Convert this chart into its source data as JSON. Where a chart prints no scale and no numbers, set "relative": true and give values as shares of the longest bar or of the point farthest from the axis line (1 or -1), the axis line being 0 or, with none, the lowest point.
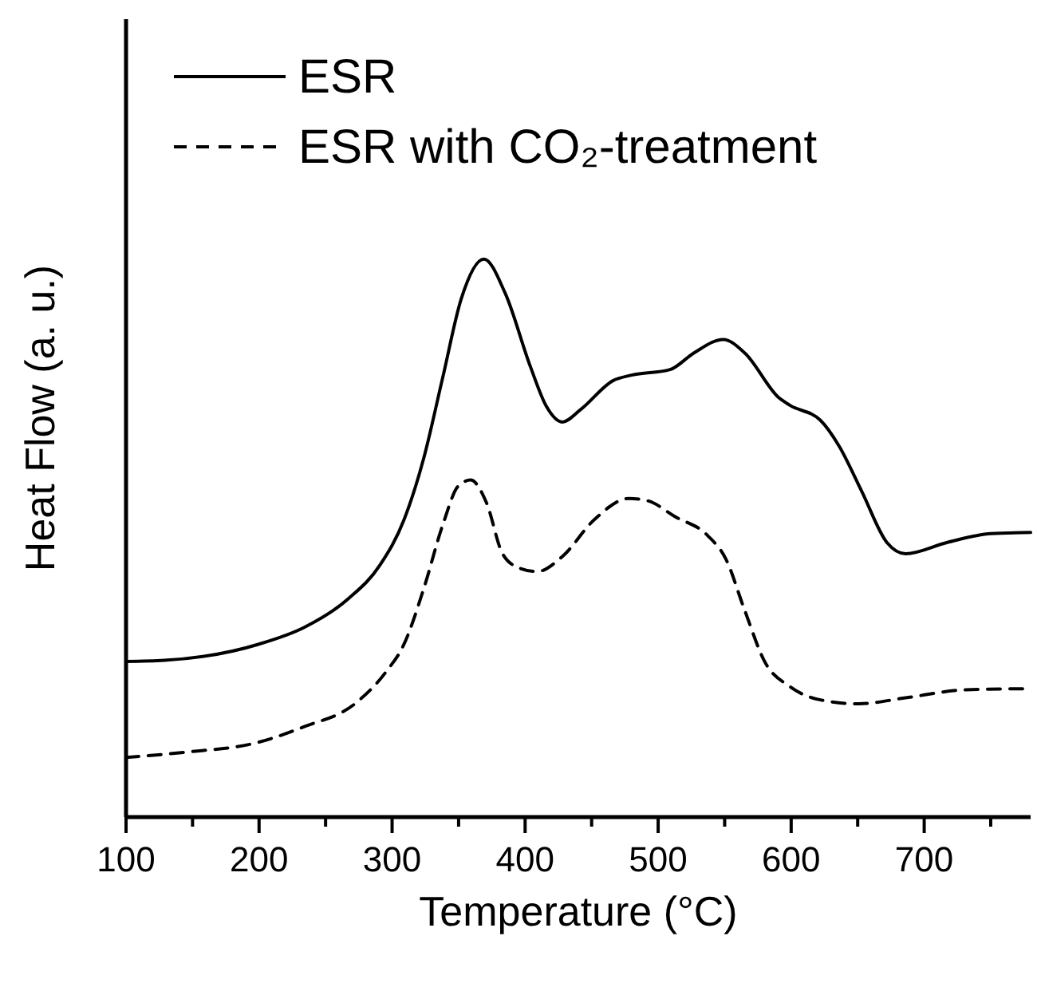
{
  "chart_data": {
    "type": "line",
    "relative": true,
    "xlabel": "Temperature (°C)",
    "ylabel": "Heat Flow (a. u.)",
    "xlim": [
      100,
      780
    ],
    "xticks": [
      100,
      {
        "value": 150,
        "label": null
      },
      200,
      {
        "value": 250,
        "label": null
      },
      300,
      {
        "value": 350,
        "label": null
      },
      400,
      {
        "value": 450,
        "label": null
      },
      500,
      {
        "value": 550,
        "label": null
      },
      600,
      {
        "value": 650,
        "label": null
      },
      700,
      {
        "value": 750,
        "label": null
      }
    ],
    "legend": "top left",
    "grid": false,
    "series": [
      {
        "name": "ESR",
        "color": "#000000",
        "line_style": "solid",
        "x": [
          100,
          129,
          200,
          234,
          267,
          291,
          309,
          324,
          338,
          352,
          369,
          385,
          404,
          416,
          428,
          442,
          466,
          480,
          509,
          527,
          549,
          565,
          591,
          599,
          622,
          636,
          653,
          672,
          686,
          717,
          750,
          780
        ],
        "values": [
          0.279,
          0.281,
          0.31,
          0.34,
          0.391,
          0.452,
          0.533,
          0.645,
          0.787,
          0.929,
          1.0,
          0.939,
          0.807,
          0.736,
          0.708,
          0.731,
          0.782,
          0.792,
          0.802,
          0.832,
          0.856,
          0.832,
          0.751,
          0.738,
          0.711,
          0.665,
          0.584,
          0.492,
          0.472,
          0.492,
          0.508,
          0.51
        ]
      },
      {
        "name": "ESR with CO₂-treatment",
        "color": "#000000",
        "line_style": "dashed",
        "x": [
          100,
          148,
          196,
          234,
          272,
          295,
          309,
          324,
          338,
          350,
          359,
          371,
          383,
          395,
          409,
          428,
          452,
          478,
          492,
          513,
          537,
          551,
          565,
          580,
          599,
          622,
          651,
          684,
          731,
          776
        ],
        "values": [
          0.107,
          0.117,
          0.132,
          0.162,
          0.203,
          0.259,
          0.31,
          0.411,
          0.523,
          0.594,
          0.604,
          0.563,
          0.472,
          0.447,
          0.44,
          0.467,
          0.533,
          0.571,
          0.567,
          0.538,
          0.505,
          0.462,
          0.371,
          0.279,
          0.234,
          0.21,
          0.203,
          0.213,
          0.228,
          0.23
        ]
      }
    ]
  }
}
